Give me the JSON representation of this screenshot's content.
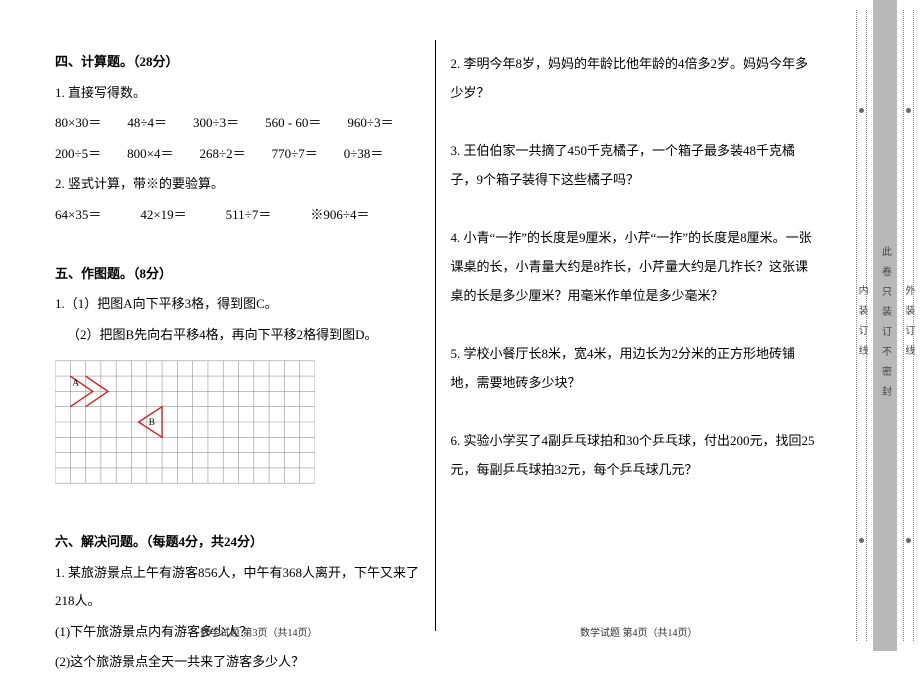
{
  "left": {
    "sec4_title": "四、计算题。（28分）",
    "sec4_q1_label": "1. 直接写得数。",
    "sec4_q1_row1": "80×30＝  48÷4＝  300÷3＝  560 - 60＝  960÷3＝",
    "sec4_q1_row2": "200÷5＝  800×4＝  268÷2＝  770÷7＝  0÷38＝",
    "sec4_q2_label": "2. 竖式计算，带※的要验算。",
    "sec4_q2_row": "64×35＝   42×19＝   511÷7＝   ※906÷4＝",
    "sec5_title": "五、作图题。（8分）",
    "sec5_q1a": "1.（1）把图A向下平移3格，得到图C。",
    "sec5_q1b": "（2）把图B先向右平移4格，再向下平移2格得到图D。",
    "sec6_title": "六、解决问题。（每题4分，共24分）",
    "sec6_q1": "1. 某旅游景点上午有游客856人，中午有368人离开，下午又来了218人。",
    "sec6_q1a": "(1)下午旅游景点内有游客多少人？",
    "sec6_q1b": "(2)这个旅游景点全天一共来了游客多少人？",
    "footer": "数学试题 第3页（共14页）"
  },
  "right": {
    "q2": "2. 李明今年8岁，妈妈的年龄比他年龄的4倍多2岁。妈妈今年多少岁？",
    "q3": "3. 王伯伯家一共摘了450千克橘子，一个箱子最多装48千克橘子，9个箱子装得下这些橘子吗？",
    "q4": "4. 小青“一拃”的长度是9厘米，小芹“一拃”的长度是8厘米。一张课桌的长，小青量大约是8拃长，小芹量大约是几拃长？这张课桌的长是多少厘米？用毫米作单位是多少毫米？",
    "q5": "5. 学校小餐厅长8米，宽4米，用边长为2分米的正方形地砖铺地，需要地砖多少块？",
    "q6": "6. 实验小学买了4副乒乓球拍和30个乒乓球，付出200元，找回25元，每副乒乓球拍32元，每个乒乓球几元？",
    "footer": "数学试题 第4页（共14页）"
  },
  "binding": {
    "inner": "内装订线",
    "mid": "此卷只装订不密封",
    "outer": "外装订线"
  },
  "figure": {
    "cols": 17,
    "rows": 8,
    "cell": 15,
    "grid_color": "#999999",
    "shape_color": "#d92020",
    "label_A": "A",
    "label_B": "B"
  }
}
